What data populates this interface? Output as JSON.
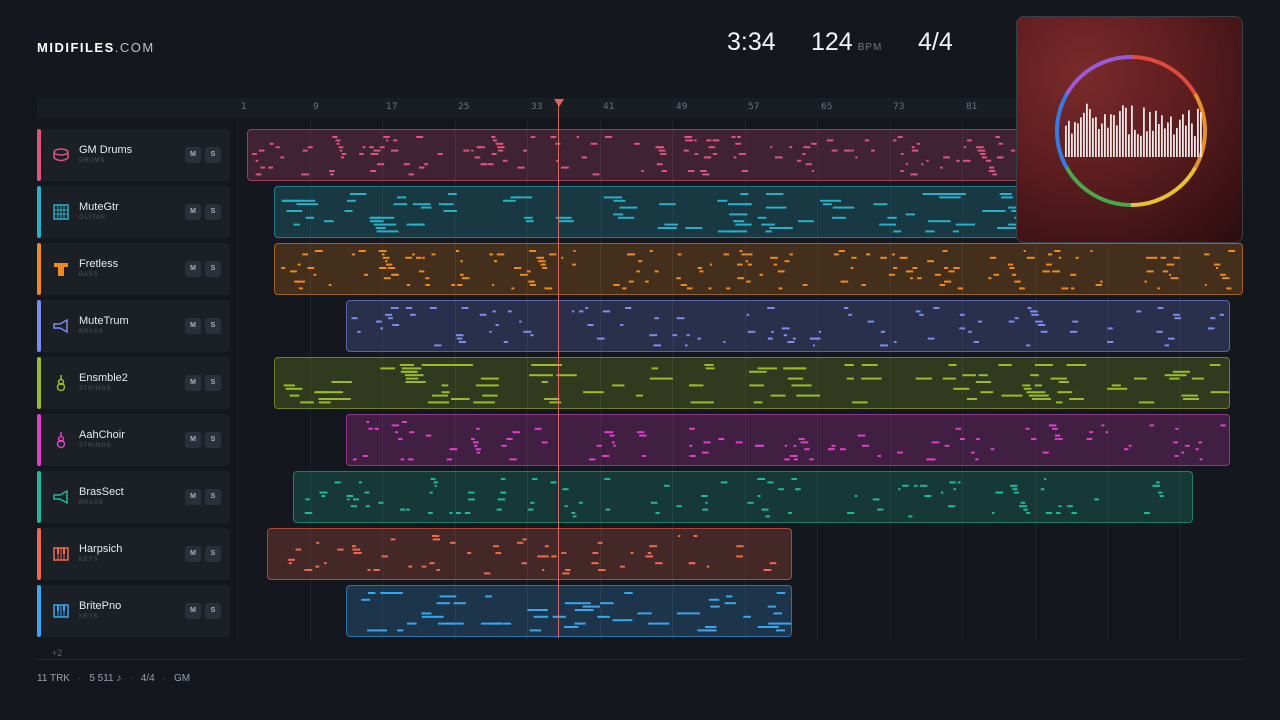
{
  "brand": {
    "name": "MIDIFILES",
    "suffix": ".COM"
  },
  "stats": {
    "duration": "3:34",
    "bpm": "124",
    "bpm_unit": "BPM",
    "time_signature": "4/4"
  },
  "ruler": {
    "ticks": [
      "1",
      "9",
      "17",
      "25",
      "33",
      "41",
      "49",
      "57",
      "65",
      "73",
      "81"
    ]
  },
  "tracks": [
    {
      "name": "GM Drums",
      "category": "DRUMS",
      "color": "#e0527f",
      "icon": "drum-icon",
      "mute": "M",
      "solo": "S"
    },
    {
      "name": "MuteGtr",
      "category": "GUITAR",
      "color": "#29b0c8",
      "icon": "guitar-icon",
      "mute": "M",
      "solo": "S"
    },
    {
      "name": "Fretless",
      "category": "BASS",
      "color": "#f08a20",
      "icon": "bass-icon",
      "mute": "M",
      "solo": "S"
    },
    {
      "name": "MuteTrum",
      "category": "BRASS",
      "color": "#7c8cf0",
      "icon": "trumpet-icon",
      "mute": "M",
      "solo": "S"
    },
    {
      "name": "Ensmble2",
      "category": "STRINGS",
      "color": "#9bbb2a",
      "icon": "violin-icon",
      "mute": "M",
      "solo": "S"
    },
    {
      "name": "AahChoir",
      "category": "STRINGS",
      "color": "#e040c8",
      "icon": "choir-icon",
      "mute": "M",
      "solo": "S"
    },
    {
      "name": "BrasSect",
      "category": "BRASS",
      "color": "#1fb89a",
      "icon": "horn-icon",
      "mute": "M",
      "solo": "S"
    },
    {
      "name": "Harpsich",
      "category": "KEYS",
      "color": "#f06a50",
      "icon": "keys-icon",
      "mute": "M",
      "solo": "S"
    },
    {
      "name": "BritePno",
      "category": "KEYS",
      "color": "#3aa6f0",
      "icon": "piano-icon",
      "mute": "M",
      "solo": "S"
    }
  ],
  "more_tracks": "+2",
  "footer": {
    "tracks": "11 TRK",
    "notes": "5 511 ♪",
    "meter": "4/4",
    "standard": "GM"
  },
  "album": {
    "ring_colors": [
      "#e04a3a",
      "#e8902a",
      "#e8c030",
      "#4aa84a",
      "#3a7ae0",
      "#9a5ad8"
    ]
  }
}
